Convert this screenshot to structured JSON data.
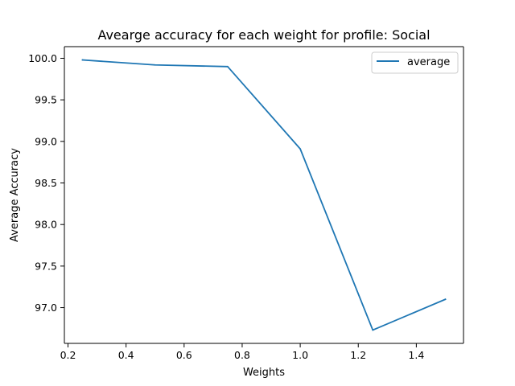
{
  "chart_data": {
    "type": "line",
    "title": "Avearge accuracy for each weight for profile: Social",
    "xlabel": "Weights",
    "ylabel": "Average Accuracy",
    "xlim": [
      0.1875,
      1.5625
    ],
    "ylim": [
      96.57,
      100.14
    ],
    "xticks": [
      0.2,
      0.4,
      0.6,
      0.8,
      1.0,
      1.2,
      1.4
    ],
    "xtick_labels": [
      "0.2",
      "0.4",
      "0.6",
      "0.8",
      "1.0",
      "1.2",
      "1.4"
    ],
    "yticks": [
      97.0,
      97.5,
      98.0,
      98.5,
      99.0,
      99.5,
      100.0
    ],
    "ytick_labels": [
      "97.0",
      "97.5",
      "98.0",
      "98.5",
      "99.0",
      "99.5",
      "100.0"
    ],
    "grid": false,
    "legend_position": "upper right",
    "series": [
      {
        "name": "average",
        "color": "#1f77b4",
        "x": [
          0.25,
          0.5,
          0.75,
          1.0,
          1.25,
          1.5
        ],
        "y": [
          99.98,
          99.92,
          99.9,
          98.91,
          96.73,
          97.1
        ]
      }
    ]
  }
}
